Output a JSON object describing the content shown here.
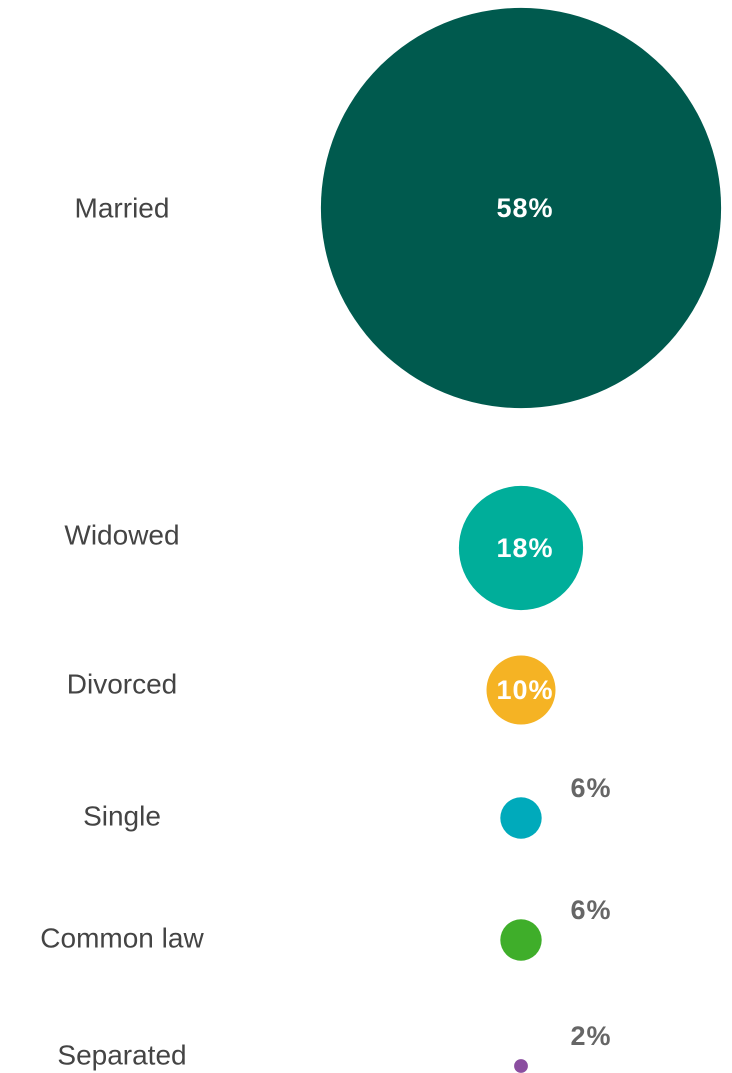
{
  "chart_data": {
    "type": "bubble",
    "categories": [
      "Married",
      "Widowed",
      "Divorced",
      "Single",
      "Common law",
      "Separated"
    ],
    "values": [
      58,
      18,
      10,
      6,
      6,
      2
    ],
    "value_labels": [
      "58%",
      "18%",
      "10%",
      "6%",
      "6%",
      "2%"
    ],
    "colors": [
      "#005a4e",
      "#00ae9a",
      "#f5b324",
      "#00aabb",
      "#3fae2a",
      "#8b4ea0"
    ]
  }
}
